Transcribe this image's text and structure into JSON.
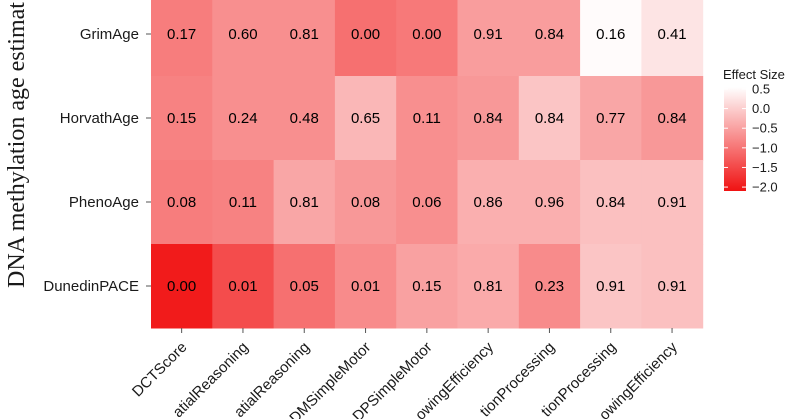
{
  "chart_data": {
    "type": "heatmap",
    "xlabel": "",
    "ylabel": "DNA methylation age estimat",
    "x": [
      "DCTScore",
      "atialReasoning",
      "atialReasoning",
      "DMSimpleMotor",
      "DPSimpleMotor",
      "owingEfficiency",
      "tionProcessing",
      "tionProcessing",
      "owingEfficiency"
    ],
    "y": [
      "GrimAge",
      "HorvathAge",
      "PhenoAge",
      "DunedinPACE"
    ],
    "rows": [
      {
        "name": "GrimAge",
        "labels": [
          "0.17",
          "0.60",
          "0.81",
          "0.00",
          "0.00",
          "0.91",
          "0.84",
          "0.16",
          "0.41"
        ],
        "effect": [
          -0.9,
          -0.7,
          -0.7,
          -1.05,
          -0.95,
          -0.55,
          -0.55,
          0.5,
          0.25
        ]
      },
      {
        "name": "HorvathAge",
        "labels": [
          "0.15",
          "0.24",
          "0.48",
          "0.65",
          "0.11",
          "0.84",
          "0.84",
          "0.77",
          "0.84"
        ],
        "effect": [
          -0.85,
          -0.7,
          -0.7,
          -0.25,
          -0.7,
          -0.6,
          -0.1,
          -0.45,
          -0.6
        ]
      },
      {
        "name": "PhenoAge",
        "labels": [
          "0.08",
          "0.11",
          "0.81",
          "0.08",
          "0.06",
          "0.86",
          "0.96",
          "0.84",
          "0.91"
        ],
        "effect": [
          -0.9,
          -0.85,
          -0.45,
          -0.6,
          -0.7,
          -0.35,
          -0.35,
          -0.15,
          -0.15
        ]
      },
      {
        "name": "DunedinPACE",
        "labels": [
          "0.00",
          "0.01",
          "0.05",
          "0.01",
          "0.15",
          "0.81",
          "0.23",
          "0.91",
          "0.91"
        ],
        "effect": [
          -2.0,
          -1.45,
          -1.05,
          -0.75,
          -0.5,
          -0.4,
          -0.75,
          -0.1,
          -0.15
        ]
      }
    ],
    "legend": {
      "title": "Effect Size",
      "ticks": [
        "0.5",
        "0.0",
        "−0.5",
        "−1.0",
        "−1.5",
        "−2.0"
      ],
      "tick_values": [
        0.5,
        0.0,
        -0.5,
        -1.0,
        -1.5,
        -2.0
      ],
      "range": [
        -2.1,
        0.55
      ],
      "placement": "right"
    },
    "colors": {
      "low": "#f01212",
      "high": "#ffffff"
    }
  }
}
